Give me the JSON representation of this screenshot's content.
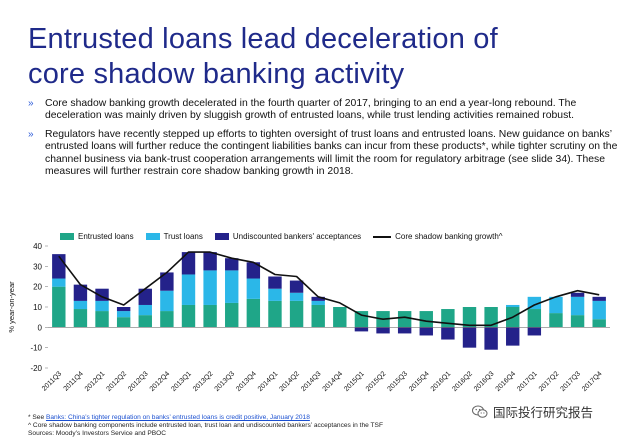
{
  "title": {
    "line1": "Entrusted loans lead deceleration of",
    "line2": "core shadow banking activity"
  },
  "bullets": [
    "Core shadow banking growth decelerated in the fourth quarter of 2017, bringing to an end a year-long rebound. The deceleration was mainly driven by sluggish growth of entrusted loans, while trust lending activities remained robust.",
    "Regulators have recently stepped up efforts to tighten oversight of trust loans and entrusted loans. New guidance on banks’ entrusted loans will further reduce the contingent liabilities banks can incur from these products*, while tighter scrutiny on the channel business via bank-trust cooperation arrangements will limit the room for regulatory arbitrage (see slide 34). These measures will further restrain core shadow banking growth in 2018."
  ],
  "bullet_mark": "»",
  "colors": {
    "entrusted": "#1fa688",
    "trust": "#2bb7e8",
    "undiscounted": "#24228a",
    "growth_line": "#111111",
    "title": "#1f2a8a"
  },
  "chart_data": {
    "type": "bar",
    "stacked": true,
    "ylabel": "% year-on-year",
    "ylim": [
      -20,
      40
    ],
    "yticks": [
      -20,
      -10,
      0,
      10,
      20,
      30,
      40
    ],
    "grid": false,
    "legend_position": "top",
    "categories": [
      "2011Q3",
      "2011Q4",
      "2012Q1",
      "2012Q2",
      "2012Q3",
      "2012Q4",
      "2013Q1",
      "2013Q2",
      "2013Q3",
      "2013Q4",
      "2014Q1",
      "2014Q2",
      "2014Q3",
      "2014Q4",
      "2015Q1",
      "2015Q2",
      "2015Q3",
      "2015Q4",
      "2016Q1",
      "2016Q2",
      "2016Q3",
      "2016Q4",
      "2017Q1",
      "2017Q2",
      "2017Q3",
      "2017Q4"
    ],
    "x_tick_labels": [
      "2011Q3",
      "2011Q4",
      "2012Q1",
      "2012Q2",
      "2012Q3",
      "2012Q4",
      "2013Q1",
      "2013Q2",
      "2013Q3",
      "2013Q4",
      "2014Q1",
      "2014Q2",
      "2014Q3",
      "2014Q4",
      "2015Q1",
      "2015Q2",
      "2015Q3",
      "2015Q4",
      "2016Q1",
      "2016Q2",
      "2016Q3",
      "2016Q4",
      "2017Q1",
      "2017Q2",
      "2017Q3",
      "2017Q4"
    ],
    "series": [
      {
        "name": "Entrusted loans",
        "type": "bar",
        "values": [
          20,
          9,
          8,
          5,
          6,
          8,
          11,
          11,
          12,
          14,
          13,
          13,
          11,
          10,
          8,
          8,
          8,
          8,
          9,
          10,
          10,
          10,
          9,
          7,
          6,
          4
        ]
      },
      {
        "name": "Trust loans",
        "type": "bar",
        "values": [
          4,
          4,
          5,
          3,
          5,
          10,
          15,
          17,
          16,
          10,
          6,
          4,
          2,
          0,
          0,
          0,
          0,
          0,
          0,
          0,
          0,
          1,
          6,
          8,
          9,
          9
        ]
      },
      {
        "name": "Undiscounted bankers' acceptances",
        "type": "bar",
        "values": [
          12,
          8,
          6,
          2,
          8,
          9,
          11,
          9,
          6,
          8,
          6,
          6,
          2,
          0,
          -2,
          -3,
          -3,
          -4,
          -6,
          -10,
          -11,
          -9,
          -4,
          0,
          2,
          2
        ]
      },
      {
        "name": "Core shadow banking growth^",
        "type": "line",
        "values": [
          35,
          21,
          15,
          11,
          19,
          27,
          37,
          37,
          34,
          32,
          26,
          25,
          15,
          12,
          6,
          4,
          5,
          3,
          2,
          1,
          1,
          5,
          11,
          15,
          18,
          16
        ]
      }
    ]
  },
  "footnotes": {
    "star_prefix": "* See ",
    "star_link": "Banks: China’s tighter regulation on banks’ entrusted loans is credit positive, January 2018",
    "caret_note": "^ Core shadow banking components include entrusted loan, trust loan and undiscounted bankers’ acceptances in the TSF",
    "sources": "Sources: Moody’s Investors Service and PBOC"
  },
  "watermark": {
    "icon": "wechat-icon",
    "text": "国际投行研究报告"
  }
}
